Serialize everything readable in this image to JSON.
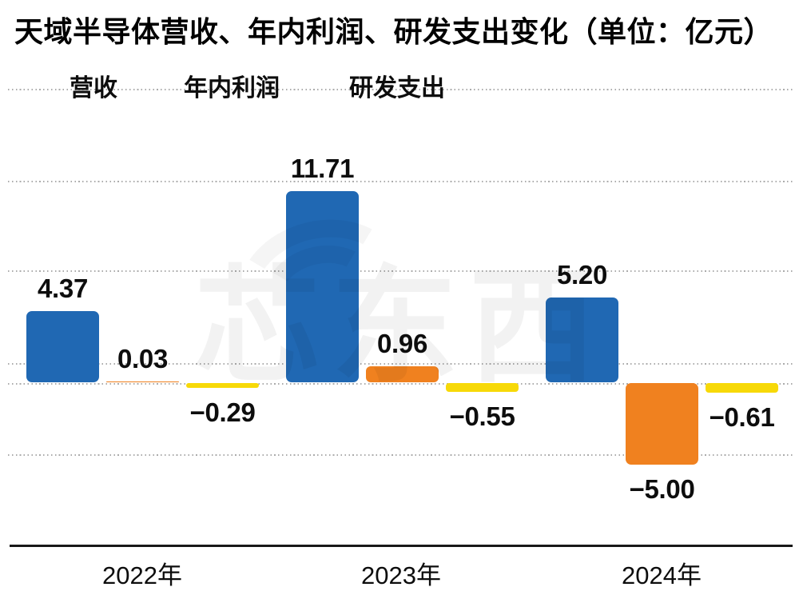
{
  "title": "天域半导体营收、年内利润、研发支出变化（单位：亿元）",
  "watermark": "芯东西",
  "colors": {
    "revenue_blue": "#2068b3",
    "profit_orange": "#f0811f",
    "rnd_yellow": "#f7d908",
    "grid": "#ababab",
    "axis": "#181818",
    "text": "#0d0d0d"
  },
  "legend": [
    {
      "label": "营收",
      "color": "#2068b3"
    },
    {
      "label": "年内利润",
      "color": "#f0811f"
    },
    {
      "label": "研发支出",
      "color": "#f7d908"
    }
  ],
  "chart_data": {
    "type": "bar",
    "title": "天域半导体营收、年内利润、研发支出变化",
    "unit": "亿元",
    "categories": [
      "2022年",
      "2023年",
      "2024年"
    ],
    "series": [
      {
        "name": "营收",
        "color": "#2068b3",
        "values": [
          4.37,
          11.71,
          5.2
        ],
        "labels": [
          "4.37",
          "11.71",
          "5.20"
        ]
      },
      {
        "name": "年内利润",
        "color": "#f0811f",
        "values": [
          0.03,
          0.96,
          -5.0
        ],
        "labels": [
          "0.03",
          "0.96",
          "−5.00"
        ]
      },
      {
        "name": "研发支出",
        "color": "#f7d908",
        "values": [
          -0.29,
          -0.55,
          -0.61
        ],
        "labels": [
          "−0.29",
          "−0.55",
          "−0.61"
        ]
      }
    ],
    "ylim": [
      -10,
      18
    ],
    "grid": "dotted-horizontal",
    "zero_line": true,
    "legend_position": "top-left",
    "value_labels_shown": true
  }
}
